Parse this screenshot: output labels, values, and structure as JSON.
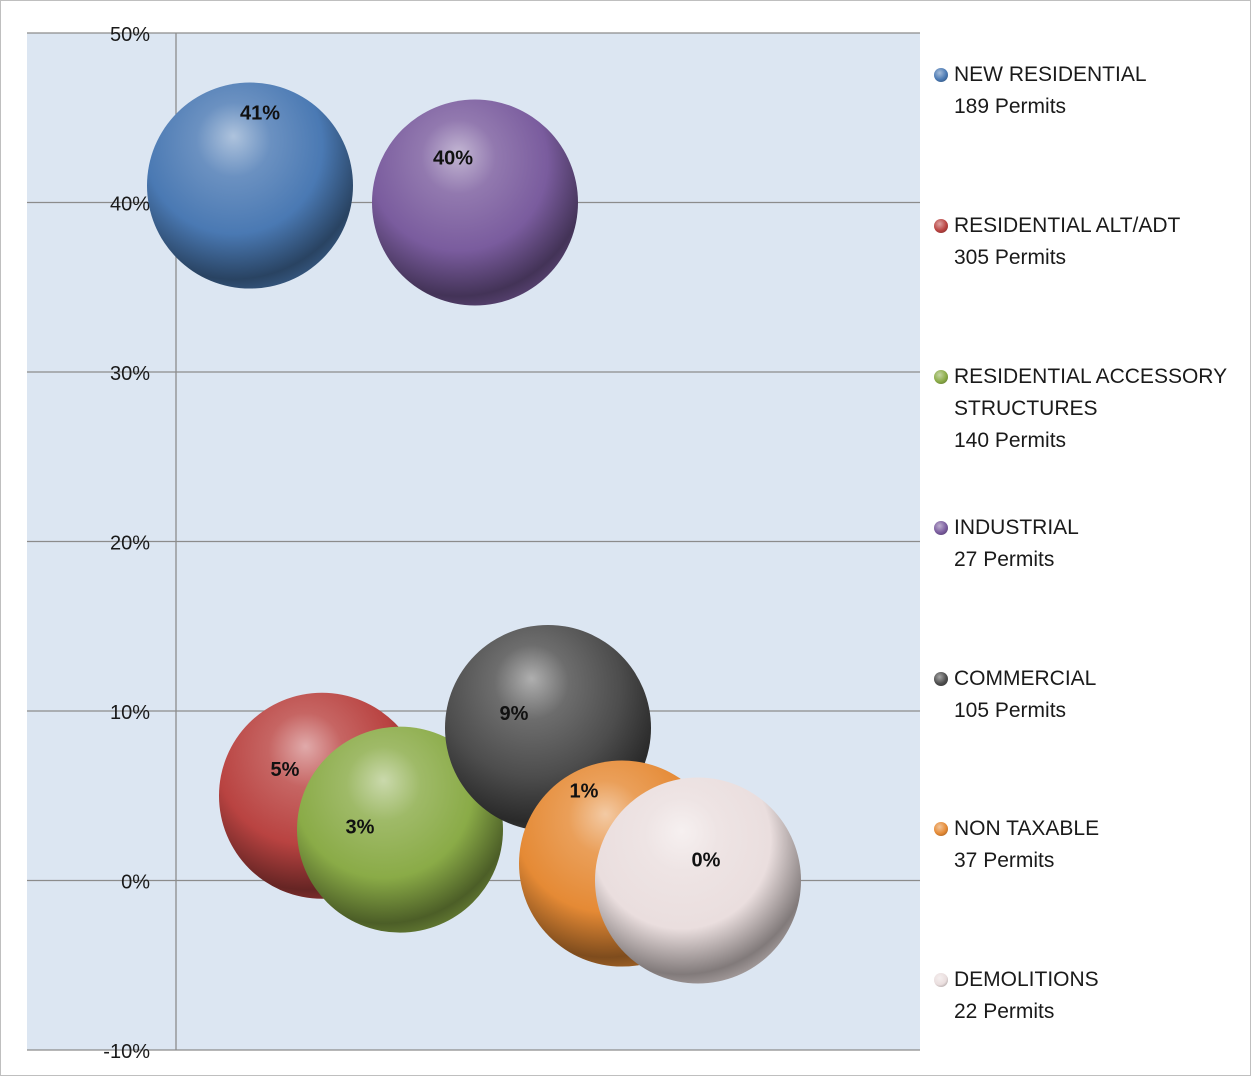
{
  "chart_data": {
    "type": "bubble",
    "title": "",
    "xlabel": "",
    "ylabel": "",
    "ylim": [
      -10,
      50
    ],
    "yticks": [
      "-10%",
      "0%",
      "10%",
      "20%",
      "30%",
      "40%",
      "50%"
    ],
    "ytick_values": [
      -10,
      0,
      10,
      20,
      30,
      40,
      50
    ],
    "grid": true,
    "legend_position": "right",
    "series": [
      {
        "name": "NEW RESIDENTIAL",
        "count_label": "189 Permits",
        "x": 1.0,
        "y": 41,
        "label": "41%",
        "color": "#4a79b3"
      },
      {
        "name": "RESIDENTIAL ALT/ADT",
        "count_label": "305 Permits",
        "x": 2.0,
        "y": 5,
        "label": "5%",
        "color": "#b94341"
      },
      {
        "name": "RESIDENTIAL ACCESSORY STRUCTURES",
        "count_label": "140 Permits",
        "x": 3.0,
        "y": 3,
        "label": "3%",
        "color": "#8aab47"
      },
      {
        "name": "INDUSTRIAL",
        "count_label": "27 Permits",
        "x": 4.0,
        "y": 40,
        "label": "40%",
        "color": "#7a5c9e"
      },
      {
        "name": "COMMERCIAL",
        "count_label": "105 Permits",
        "x": 5.0,
        "y": 9,
        "label": "9%",
        "color": "#4d4d4d"
      },
      {
        "name": "NON TAXABLE",
        "count_label": "37 Permits",
        "x": 6.0,
        "y": 1,
        "label": "1%",
        "color": "#e58a35"
      },
      {
        "name": "DEMOLITIONS",
        "count_label": "22 Permits",
        "x": 7.0,
        "y": 0,
        "label": "0%",
        "color": "#eadede"
      }
    ]
  },
  "colors": {
    "plot_background": "#dce6f2",
    "gridline": "#8c8c8c"
  }
}
